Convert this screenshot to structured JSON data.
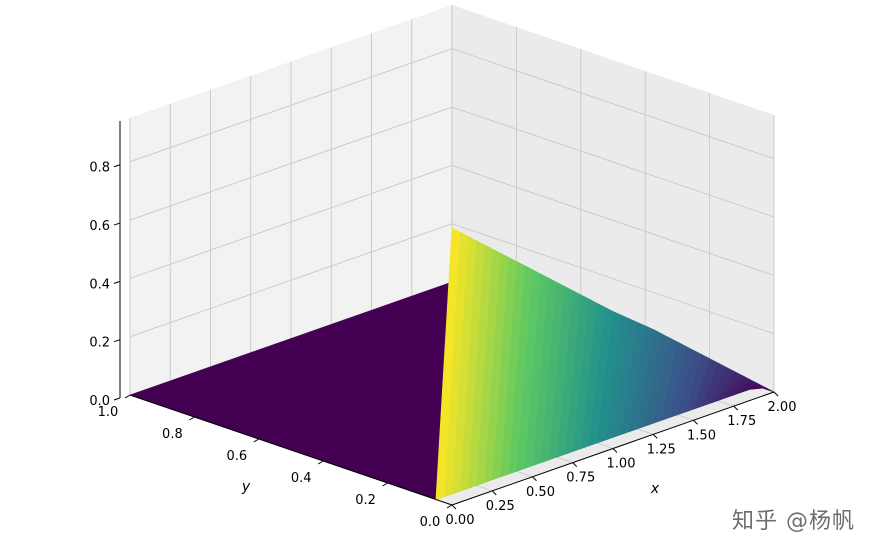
{
  "chart_data": {
    "type": "surface",
    "title": "",
    "xlabel": "x",
    "ylabel": "y",
    "zlabel": "",
    "xlim": [
      0,
      2
    ],
    "ylim": [
      0,
      1
    ],
    "zlim": [
      0,
      0.95
    ],
    "grid": true,
    "colormap": "viridis",
    "x_ticks": [
      "0.00",
      "0.25",
      "0.50",
      "0.75",
      "1.00",
      "1.25",
      "1.50",
      "1.75",
      "2.00"
    ],
    "y_ticks": [
      "0.0",
      "0.2",
      "0.4",
      "0.6",
      "0.8",
      "1.0"
    ],
    "z_ticks": [
      "0.0",
      "0.2",
      "0.4",
      "0.6",
      "0.8"
    ],
    "surface_description": "z is 0 everywhere except the row y = 0, where z falls linearly from about 0.95 at x = 0 to 0 at x = 2",
    "edge_profile_y0": {
      "x": [
        0.0,
        0.25,
        0.5,
        0.75,
        1.0,
        1.25,
        1.5,
        1.75,
        2.0
      ],
      "z": [
        0.95,
        0.83,
        0.71,
        0.59,
        0.47,
        0.36,
        0.24,
        0.12,
        0.0
      ]
    },
    "colors": {
      "pane": "#f2f2f2",
      "pane_side": "#ebebeb",
      "grid": "#c8c8c8",
      "floor": "#440154",
      "colormap_stops": [
        "#440154",
        "#3b528b",
        "#21918c",
        "#5ec962",
        "#fde725"
      ]
    }
  },
  "watermark": "知乎 @杨帆"
}
